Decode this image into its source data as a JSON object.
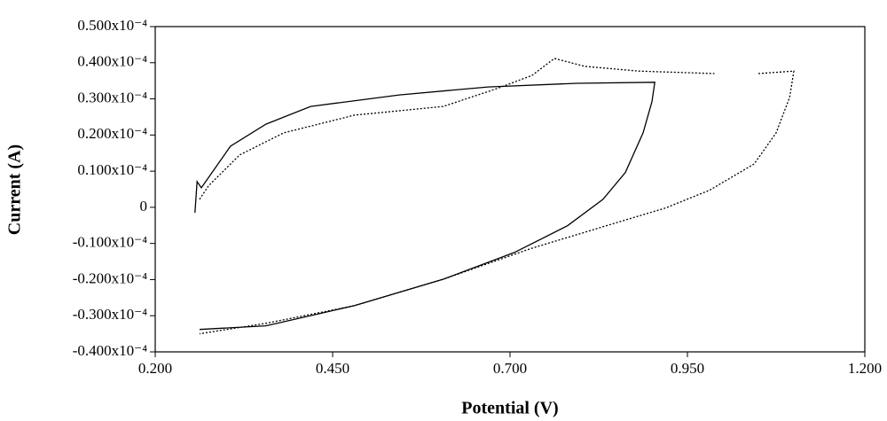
{
  "chart_data": {
    "type": "line",
    "x_label": "Potential (V)",
    "y_label": "Current (A)",
    "xlim": [
      0.2,
      1.2
    ],
    "xticks": [
      {
        "value": 0.2,
        "label": "0.200"
      },
      {
        "value": 0.45,
        "label": "0.450"
      },
      {
        "value": 0.7,
        "label": "0.700"
      },
      {
        "value": 0.95,
        "label": "0.950"
      },
      {
        "value": 1.2,
        "label": "1.200"
      }
    ],
    "ylim": [
      -4e-05,
      5e-05
    ],
    "yticks": [
      {
        "value": 5e-05,
        "label": "0.500x10⁻⁴"
      },
      {
        "value": 4e-05,
        "label": "0.400x10⁻⁴"
      },
      {
        "value": 3e-05,
        "label": "0.300x10⁻⁴"
      },
      {
        "value": 2e-05,
        "label": "0.200x10⁻⁴"
      },
      {
        "value": 1e-05,
        "label": "0.100x10⁻⁴"
      },
      0,
      {
        "value": -1e-05,
        "label": "-0.100x10⁻⁴"
      },
      {
        "value": -2e-05,
        "label": "-0.200x10⁻⁴"
      },
      {
        "value": -3e-05,
        "label": "-0.300x10⁻⁴"
      },
      {
        "value": -4e-05,
        "label": "-0.400x10⁻⁴"
      }
    ],
    "grid": false,
    "series": [
      {
        "color": "#000000",
        "style": "solid",
        "x": [
          0.256,
          0.259,
          0.265,
          0.306,
          0.356,
          0.419,
          0.544,
          0.669,
          0.794,
          0.904,
          0.9,
          0.8875,
          0.8625,
          0.831,
          0.781,
          0.706,
          0.606,
          0.481,
          0.356,
          0.2625
        ],
        "values": [
          -1.5e-06,
          7.1e-06,
          5.4e-06,
          1.69e-05,
          2.3e-05,
          2.79e-05,
          3.11e-05,
          3.33e-05,
          3.43e-05,
          3.46e-05,
          2.92e-05,
          2.06e-05,
          9.6e-06,
          2.2e-06,
          -5.1e-06,
          -1.25e-05,
          -1.99e-05,
          -2.72e-05,
          -3.28e-05,
          -3.38e-05
        ]
      },
      {
        "color": "#000000",
        "style": "dotted",
        "x": [
          0.2625,
          0.275,
          0.319,
          0.381,
          0.481,
          0.606,
          0.681,
          0.731,
          0.7625,
          0.806,
          0.881,
          0.988,
          null,
          1.05,
          1.1,
          1.094,
          1.075,
          1.044,
          0.981,
          0.919,
          0.856,
          0.731,
          0.606,
          0.481,
          0.356,
          0.2625
        ],
        "values": [
          2.2e-06,
          5.9e-06,
          1.45e-05,
          2.06e-05,
          2.55e-05,
          2.79e-05,
          3.28e-05,
          3.65e-05,
          4.12e-05,
          3.9e-05,
          3.77e-05,
          3.7e-05,
          null,
          3.7e-05,
          3.77e-05,
          3.04e-05,
          2.06e-05,
          1.2e-05,
          4.7e-06,
          -2e-07,
          -3.9e-06,
          -1.13e-05,
          -1.99e-05,
          -2.72e-05,
          -3.21e-05,
          -3.5e-05
        ]
      }
    ]
  }
}
